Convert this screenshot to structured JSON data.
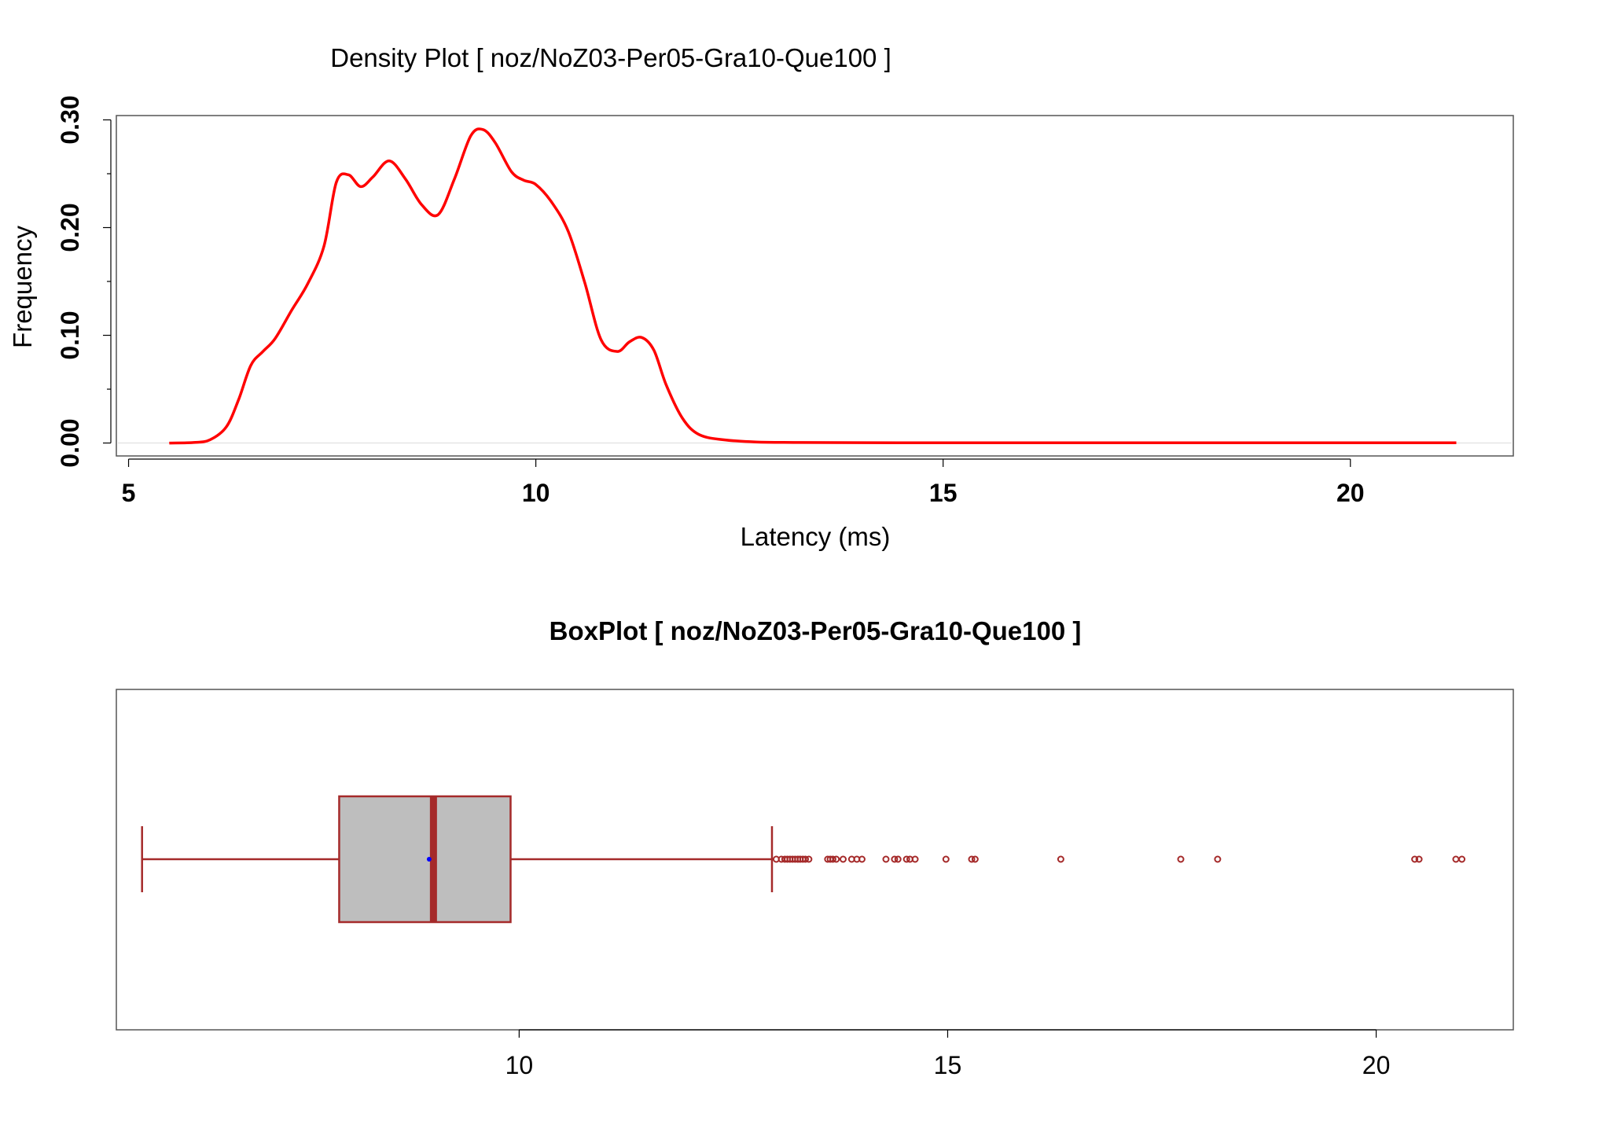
{
  "chart_data": [
    {
      "type": "line",
      "title": "Density Plot [ noz/NoZ03-Per05-Gra10-Que100 ]",
      "xlabel": "Latency (ms)",
      "ylabel": "Frequency",
      "xlim": [
        4.85,
        22.0
      ],
      "ylim": [
        -0.012,
        0.304
      ],
      "xticks": [
        "5",
        "10",
        "15",
        "20"
      ],
      "yticks": [
        "0.00",
        "0.10",
        "0.20",
        "0.30"
      ],
      "grid": false,
      "series": [
        {
          "color": "#ff0000",
          "x": [
            5.5,
            5.8,
            6.0,
            6.2,
            6.35,
            6.5,
            6.65,
            6.8,
            7.0,
            7.2,
            7.4,
            7.55,
            7.7,
            7.85,
            8.0,
            8.2,
            8.4,
            8.6,
            8.8,
            9.0,
            9.2,
            9.35,
            9.5,
            9.7,
            9.85,
            10.0,
            10.2,
            10.4,
            10.6,
            10.8,
            11.0,
            11.15,
            11.3,
            11.45,
            11.6,
            11.8,
            12.0,
            12.3,
            12.7,
            13.2,
            14.0,
            15.0,
            16.0,
            17.0,
            18.0,
            19.0,
            20.0,
            21.3
          ],
          "y": [
            0.0,
            0.0005,
            0.003,
            0.015,
            0.04,
            0.072,
            0.085,
            0.097,
            0.123,
            0.148,
            0.183,
            0.242,
            0.249,
            0.238,
            0.247,
            0.262,
            0.245,
            0.221,
            0.212,
            0.245,
            0.285,
            0.291,
            0.279,
            0.252,
            0.244,
            0.24,
            0.223,
            0.196,
            0.149,
            0.096,
            0.085,
            0.094,
            0.098,
            0.086,
            0.054,
            0.023,
            0.008,
            0.003,
            0.001,
            0.0005,
            0.0003,
            0.0002,
            0.0002,
            0.0002,
            0.0002,
            0.0002,
            0.0002,
            0.0002
          ]
        }
      ]
    },
    {
      "type": "box",
      "title": "BoxPlot [ noz/NoZ03-Per05-Gra10-Que100 ]",
      "xlim": [
        5.3,
        21.6
      ],
      "xticks": [
        "10",
        "15",
        "20"
      ],
      "colors": {
        "border": "#a52a2a",
        "fill": "#bebebe",
        "median": "#a52a2a",
        "mean": "#0000ff"
      },
      "whisker_low": 5.6,
      "q1": 7.9,
      "median": 9.0,
      "q3": 9.9,
      "whisker_high": 12.95,
      "mean": 8.95,
      "outliers": [
        13.0,
        13.06,
        13.1,
        13.13,
        13.16,
        13.19,
        13.22,
        13.25,
        13.28,
        13.31,
        13.34,
        13.38,
        13.6,
        13.63,
        13.66,
        13.7,
        13.78,
        13.88,
        13.94,
        14.0,
        14.28,
        14.38,
        14.42,
        14.52,
        14.56,
        14.62,
        14.98,
        15.28,
        15.32,
        16.32,
        17.72,
        18.15,
        20.45,
        20.5,
        20.93,
        21.0
      ]
    }
  ]
}
